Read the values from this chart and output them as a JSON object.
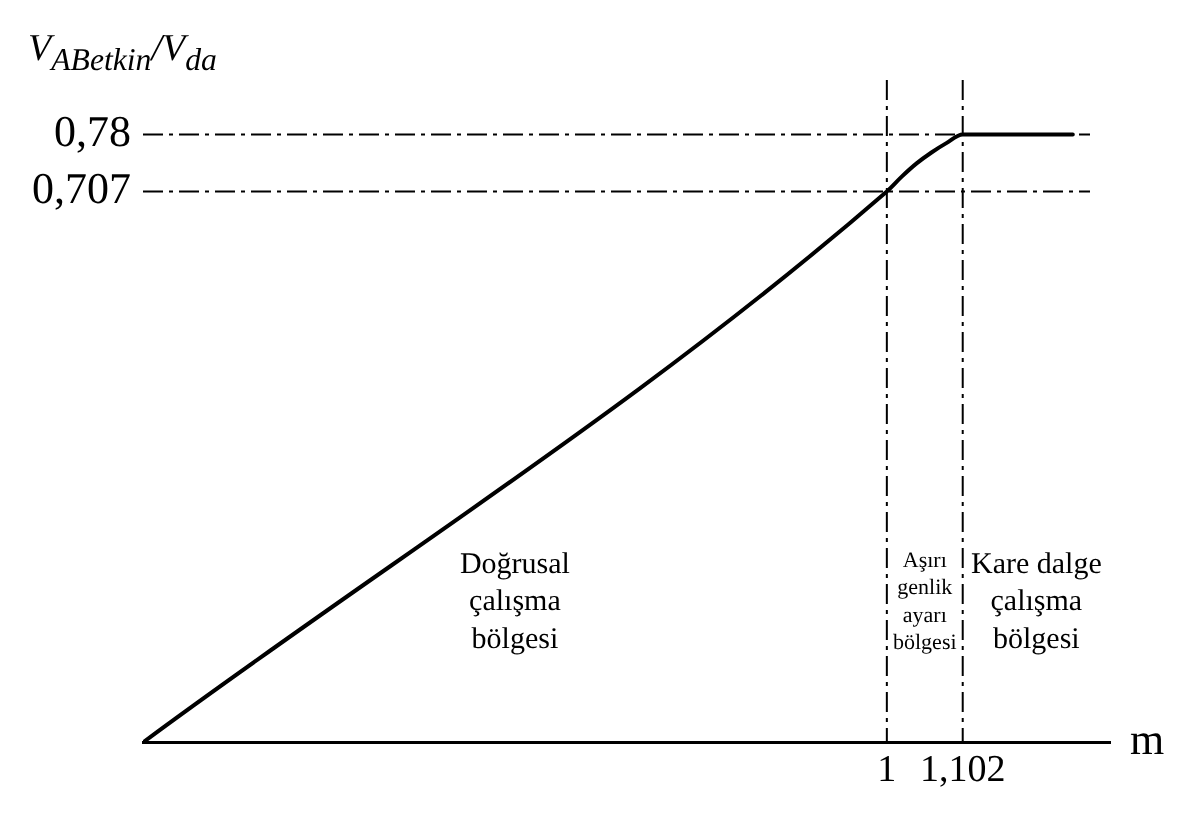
{
  "chart_data": {
    "type": "line",
    "ylabel": "V$_{ABetkin}$/V$_{da}$",
    "xlabel": "m",
    "x": [
      0,
      1,
      1.02,
      1.04,
      1.06,
      1.08,
      1.102,
      1.25
    ],
    "series": [
      {
        "color": "#000000",
        "values": [
          0,
          0.707,
          0.726,
          0.743,
          0.757,
          0.769,
          0.78,
          0.78
        ]
      }
    ],
    "xlim": [
      0,
      1.3
    ],
    "ylim": [
      0,
      0.85
    ],
    "xticks": [
      1,
      {
        "value": 1.102,
        "label": "1,102"
      }
    ],
    "yticks": [
      {
        "value": 0.707,
        "label": "0,707"
      },
      {
        "value": 0.78,
        "label": "0,78"
      }
    ],
    "ref_lines": [
      {
        "axis": "x",
        "value": 1,
        "line_style": "dashed",
        "color": "#000000"
      },
      {
        "axis": "x",
        "value": 1.102,
        "line_style": "dashed",
        "color": "#000000"
      },
      {
        "axis": "y",
        "value": 0.707,
        "line_style": "dashed",
        "color": "#000000"
      },
      {
        "axis": "y",
        "value": 0.78,
        "line_style": "dashed",
        "color": "#000000"
      }
    ],
    "annotations": [
      "Doğrusal çalışma bölgesi",
      "Aşırı genlik ayarı bölgesi",
      "Kare dalge çalışma bölgesi"
    ],
    "grid": false,
    "legend": false,
    "marker": "none",
    "line_style": "solid"
  }
}
